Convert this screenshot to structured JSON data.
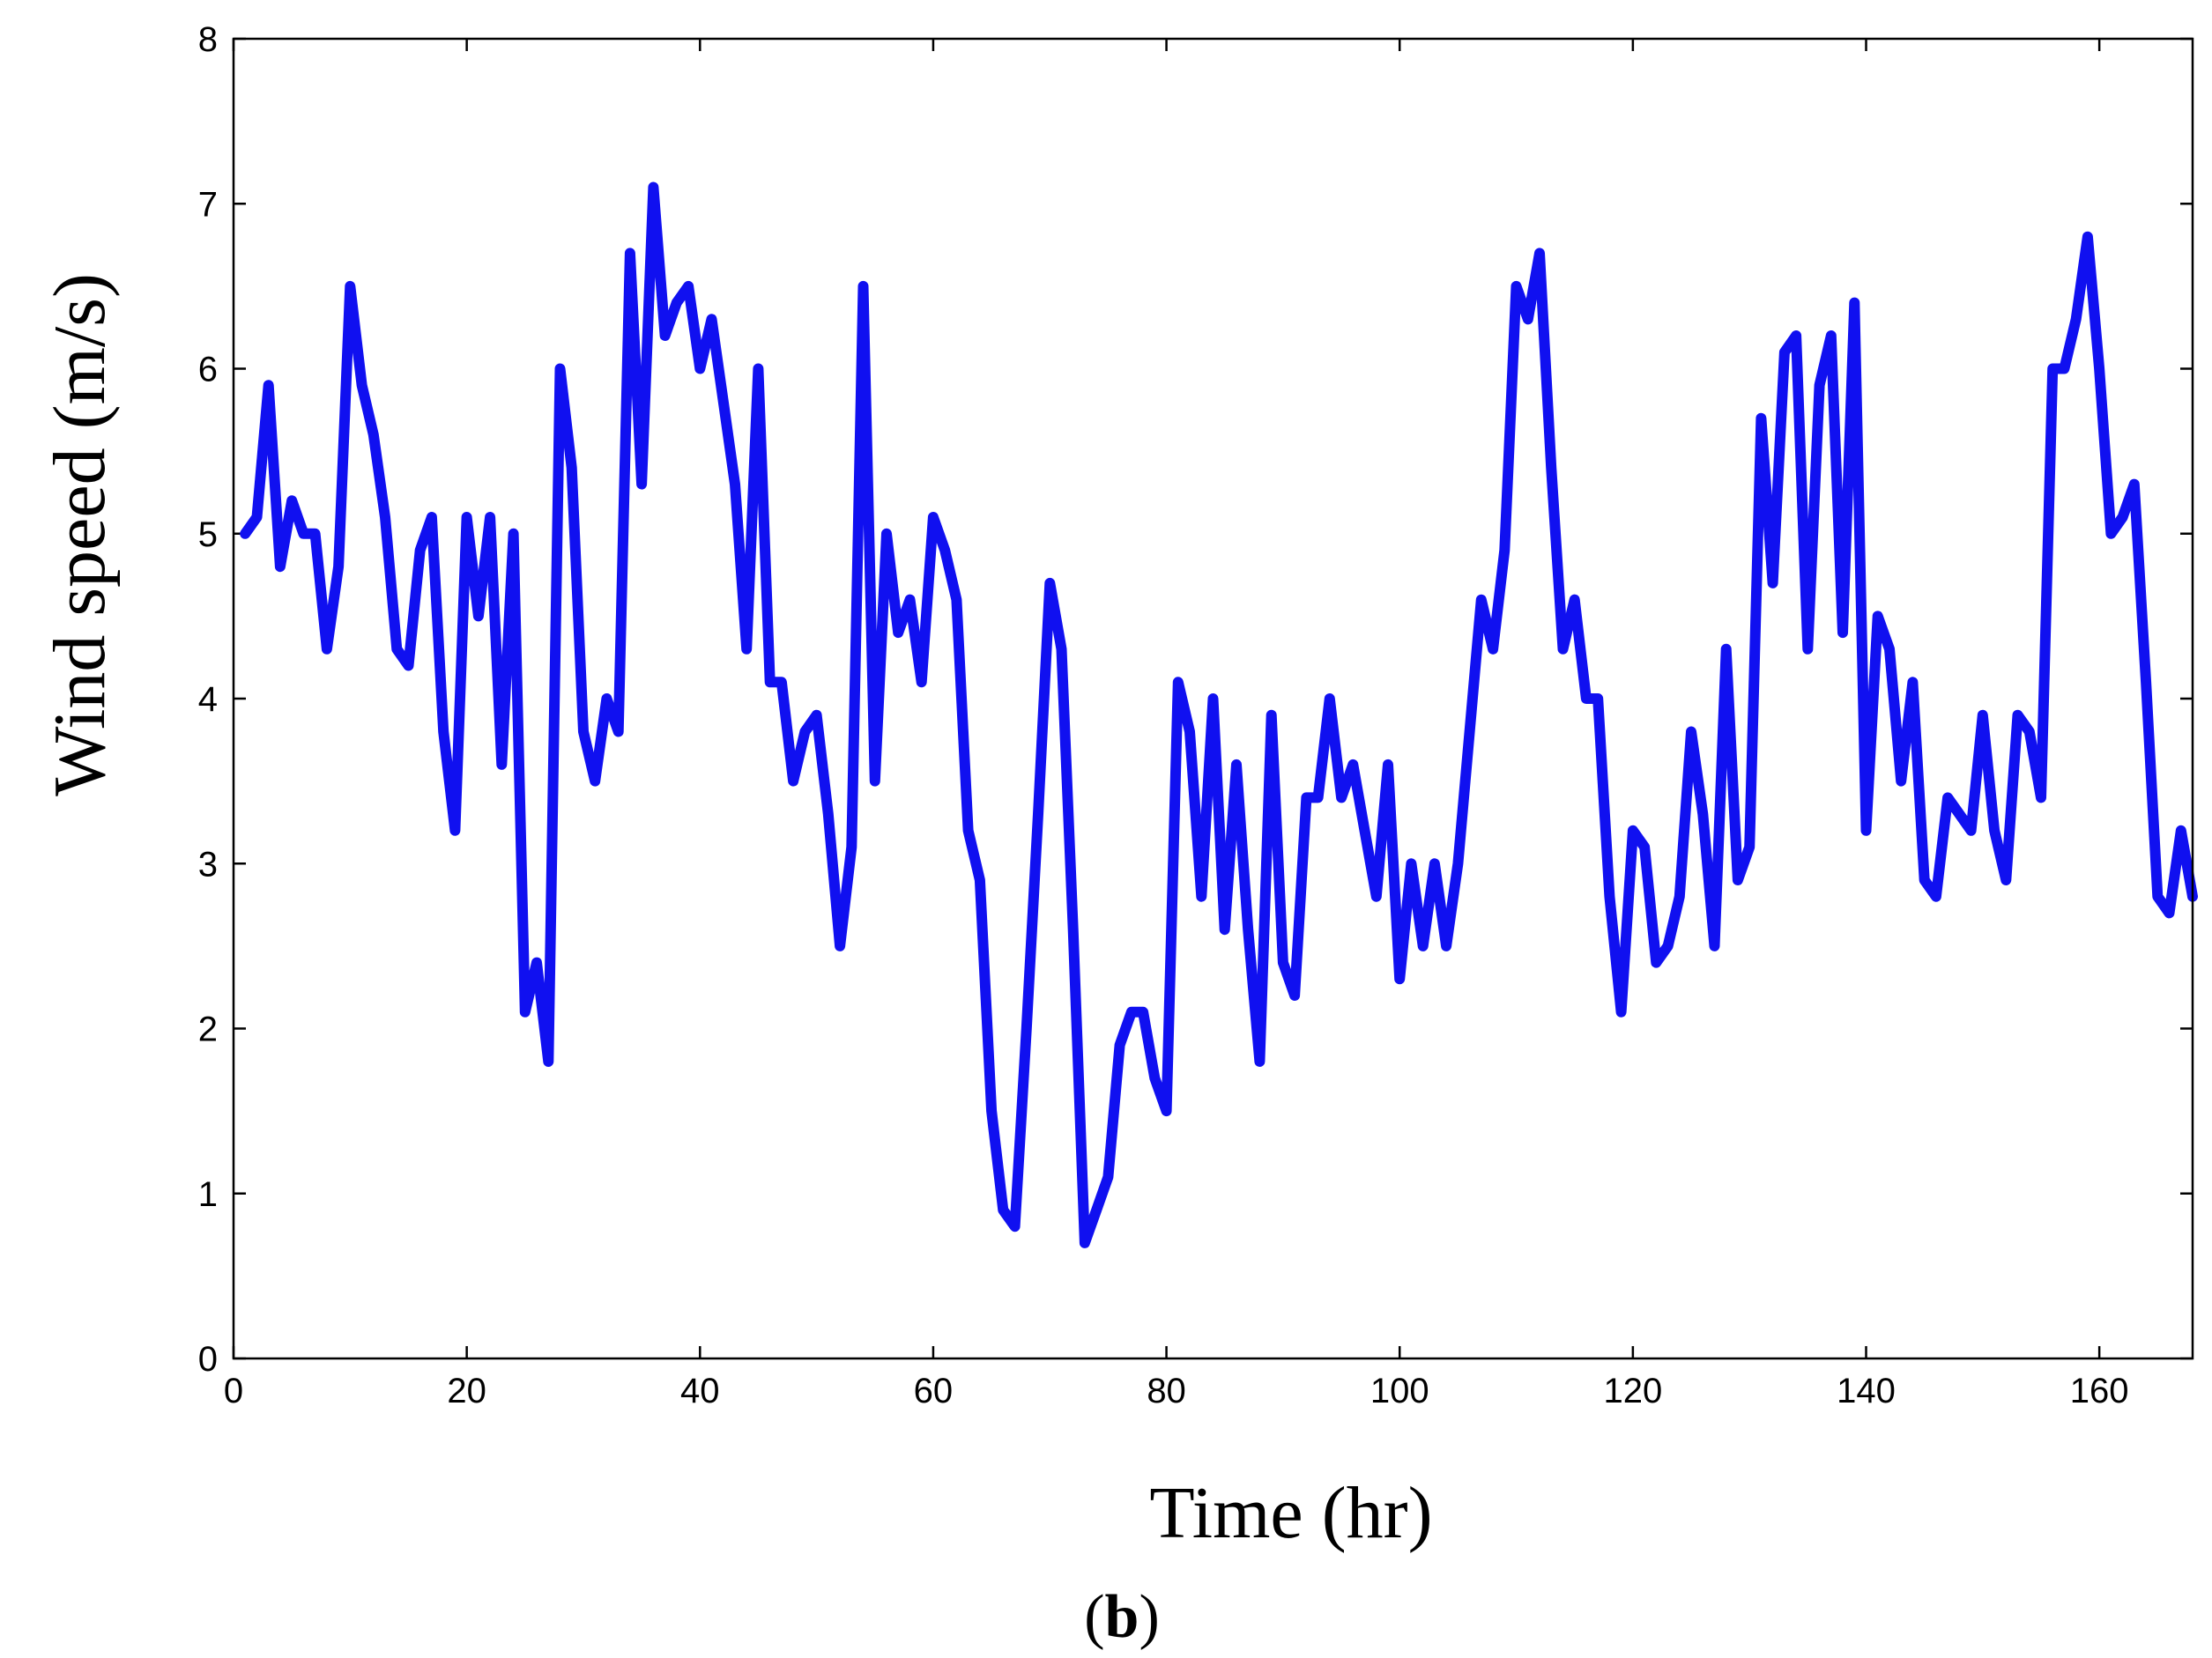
{
  "chart_data": {
    "type": "line",
    "xlabel": "Time (hr)",
    "ylabel": "Wind speed (m/s)",
    "panel_label": "b",
    "xlim": [
      0,
      168
    ],
    "ylim": [
      0,
      8
    ],
    "x_ticks": [
      0,
      20,
      40,
      60,
      80,
      100,
      120,
      140,
      160
    ],
    "y_ticks": [
      0,
      1,
      2,
      3,
      4,
      5,
      6,
      7,
      8
    ],
    "grid": false,
    "line_color": "#1010F0",
    "series": [
      {
        "x": [
          1,
          2,
          3,
          4,
          5,
          6,
          7,
          8,
          9,
          10,
          11,
          12,
          13,
          14,
          15,
          16,
          17,
          18,
          19,
          20,
          21,
          22,
          23,
          24,
          25,
          26,
          27,
          28,
          29,
          30,
          31,
          32,
          33,
          34,
          35,
          36,
          37,
          38,
          39,
          40,
          41,
          42,
          43,
          44,
          45,
          46,
          47,
          48,
          49,
          50,
          51,
          52,
          53,
          54,
          55,
          56,
          57,
          58,
          59,
          60,
          61,
          62,
          63,
          64,
          65,
          66,
          67,
          68,
          69,
          70,
          71,
          72,
          73,
          74,
          75,
          76,
          77,
          78,
          79,
          80,
          81,
          82,
          83,
          84,
          85,
          86,
          87,
          88,
          89,
          90,
          91,
          92,
          93,
          94,
          95,
          96,
          97,
          98,
          99,
          100,
          101,
          102,
          103,
          104,
          105,
          106,
          107,
          108,
          109,
          110,
          111,
          112,
          113,
          114,
          115,
          116,
          117,
          118,
          119,
          120,
          121,
          122,
          123,
          124,
          125,
          126,
          127,
          128,
          129,
          130,
          131,
          132,
          133,
          134,
          135,
          136,
          137,
          138,
          139,
          140,
          141,
          142,
          143,
          144,
          145,
          146,
          147,
          148,
          149,
          150,
          151,
          152,
          153,
          154,
          155,
          156,
          157,
          158,
          159,
          160,
          161,
          162,
          163,
          164,
          165,
          166,
          167,
          168
        ],
        "values": [
          5.0,
          5.1,
          5.9,
          4.8,
          5.2,
          5.0,
          5.0,
          4.3,
          4.8,
          6.5,
          5.9,
          5.6,
          5.1,
          4.3,
          4.2,
          4.9,
          5.1,
          3.8,
          3.2,
          5.1,
          4.5,
          5.1,
          3.6,
          5.0,
          2.1,
          2.4,
          1.8,
          6.0,
          5.4,
          3.8,
          3.5,
          4.0,
          3.8,
          6.7,
          5.3,
          7.1,
          6.2,
          6.4,
          6.5,
          6.0,
          6.3,
          5.8,
          5.3,
          4.3,
          6.0,
          4.1,
          4.1,
          3.5,
          3.8,
          3.9,
          3.3,
          2.5,
          3.1,
          6.5,
          3.5,
          5.0,
          4.4,
          4.6,
          4.1,
          5.1,
          4.9,
          4.6,
          3.2,
          2.9,
          1.5,
          0.9,
          0.8,
          2.0,
          3.3,
          4.7,
          4.3,
          2.6,
          0.7,
          0.9,
          1.1,
          1.9,
          2.1,
          2.1,
          1.7,
          1.5,
          4.1,
          3.8,
          2.8,
          4.0,
          2.6,
          3.6,
          2.6,
          1.8,
          3.9,
          2.4,
          2.2,
          3.4,
          3.4,
          4.0,
          3.4,
          3.6,
          3.2,
          2.8,
          3.6,
          2.3,
          3.0,
          2.5,
          3.0,
          2.5,
          3.0,
          3.8,
          4.6,
          4.3,
          4.9,
          6.5,
          6.3,
          6.7,
          5.4,
          4.3,
          4.6,
          4.0,
          4.0,
          2.8,
          2.1,
          3.2,
          3.1,
          2.4,
          2.5,
          2.8,
          3.8,
          3.3,
          2.5,
          4.3,
          2.9,
          3.1,
          5.7,
          4.7,
          6.1,
          6.2,
          4.3,
          5.9,
          6.2,
          4.4,
          6.4,
          3.2,
          4.5,
          4.3,
          3.5,
          4.1,
          2.9,
          2.8,
          3.4,
          3.3,
          3.2,
          3.9,
          3.2,
          2.9,
          3.9,
          3.8,
          3.4,
          6.0,
          6.0,
          6.3,
          6.8,
          6.0,
          5.0,
          5.1,
          5.3,
          4.1,
          2.8,
          2.7,
          3.2,
          2.8
        ]
      }
    ]
  }
}
